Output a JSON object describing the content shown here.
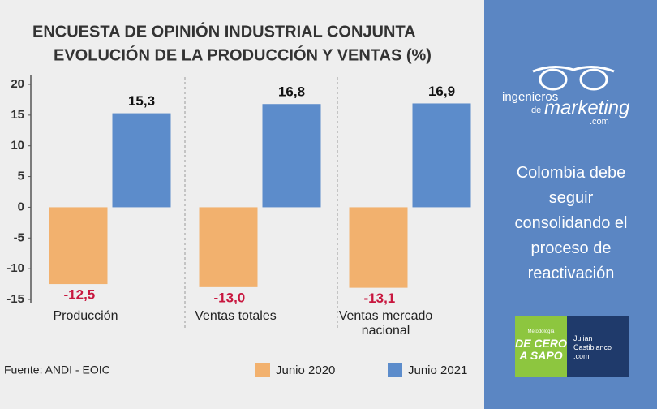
{
  "chart_data": {
    "type": "bar",
    "title": "ENCUESTA DE OPINIÓN INDUSTRIAL CONJUNTA",
    "subtitle": "EVOLUCIÓN DE LA PRODUCCIÓN Y VENTAS (%)",
    "categories": [
      "Producción",
      "Ventas totales",
      "Ventas mercado nacional"
    ],
    "series": [
      {
        "name": "Junio 2020",
        "color": "#f2b16e",
        "values": [
          -12.5,
          -13.0,
          -13.1
        ],
        "value_labels": [
          "-12,5",
          "-13,0",
          "-13,1"
        ],
        "label_color": "#c8173f"
      },
      {
        "name": "Junio 2021",
        "color": "#5c8ccb",
        "values": [
          15.3,
          16.8,
          16.9
        ],
        "value_labels": [
          "15,3",
          "16,8",
          "16,9"
        ],
        "label_color": "#111111"
      }
    ],
    "ylim": [
      -15,
      20
    ],
    "yticks": [
      20,
      15,
      10,
      5,
      0,
      -5,
      -10,
      -15
    ],
    "grid": false,
    "source": "Fuente: ANDI - EOIC"
  },
  "side_panel": {
    "logo_line1": "ingenieros",
    "logo_line2": "de",
    "logo_line3": "marketing",
    "logo_line4": ".com",
    "headline": "Colombia debe seguir consolidando el proceso de reactivación",
    "badge_left_top": "Metodología",
    "badge_left_main": "DE CERO A SAPO",
    "badge_right_line1": "Julian",
    "badge_right_line2": "Castiblanco",
    "badge_right_line3": ".com"
  }
}
